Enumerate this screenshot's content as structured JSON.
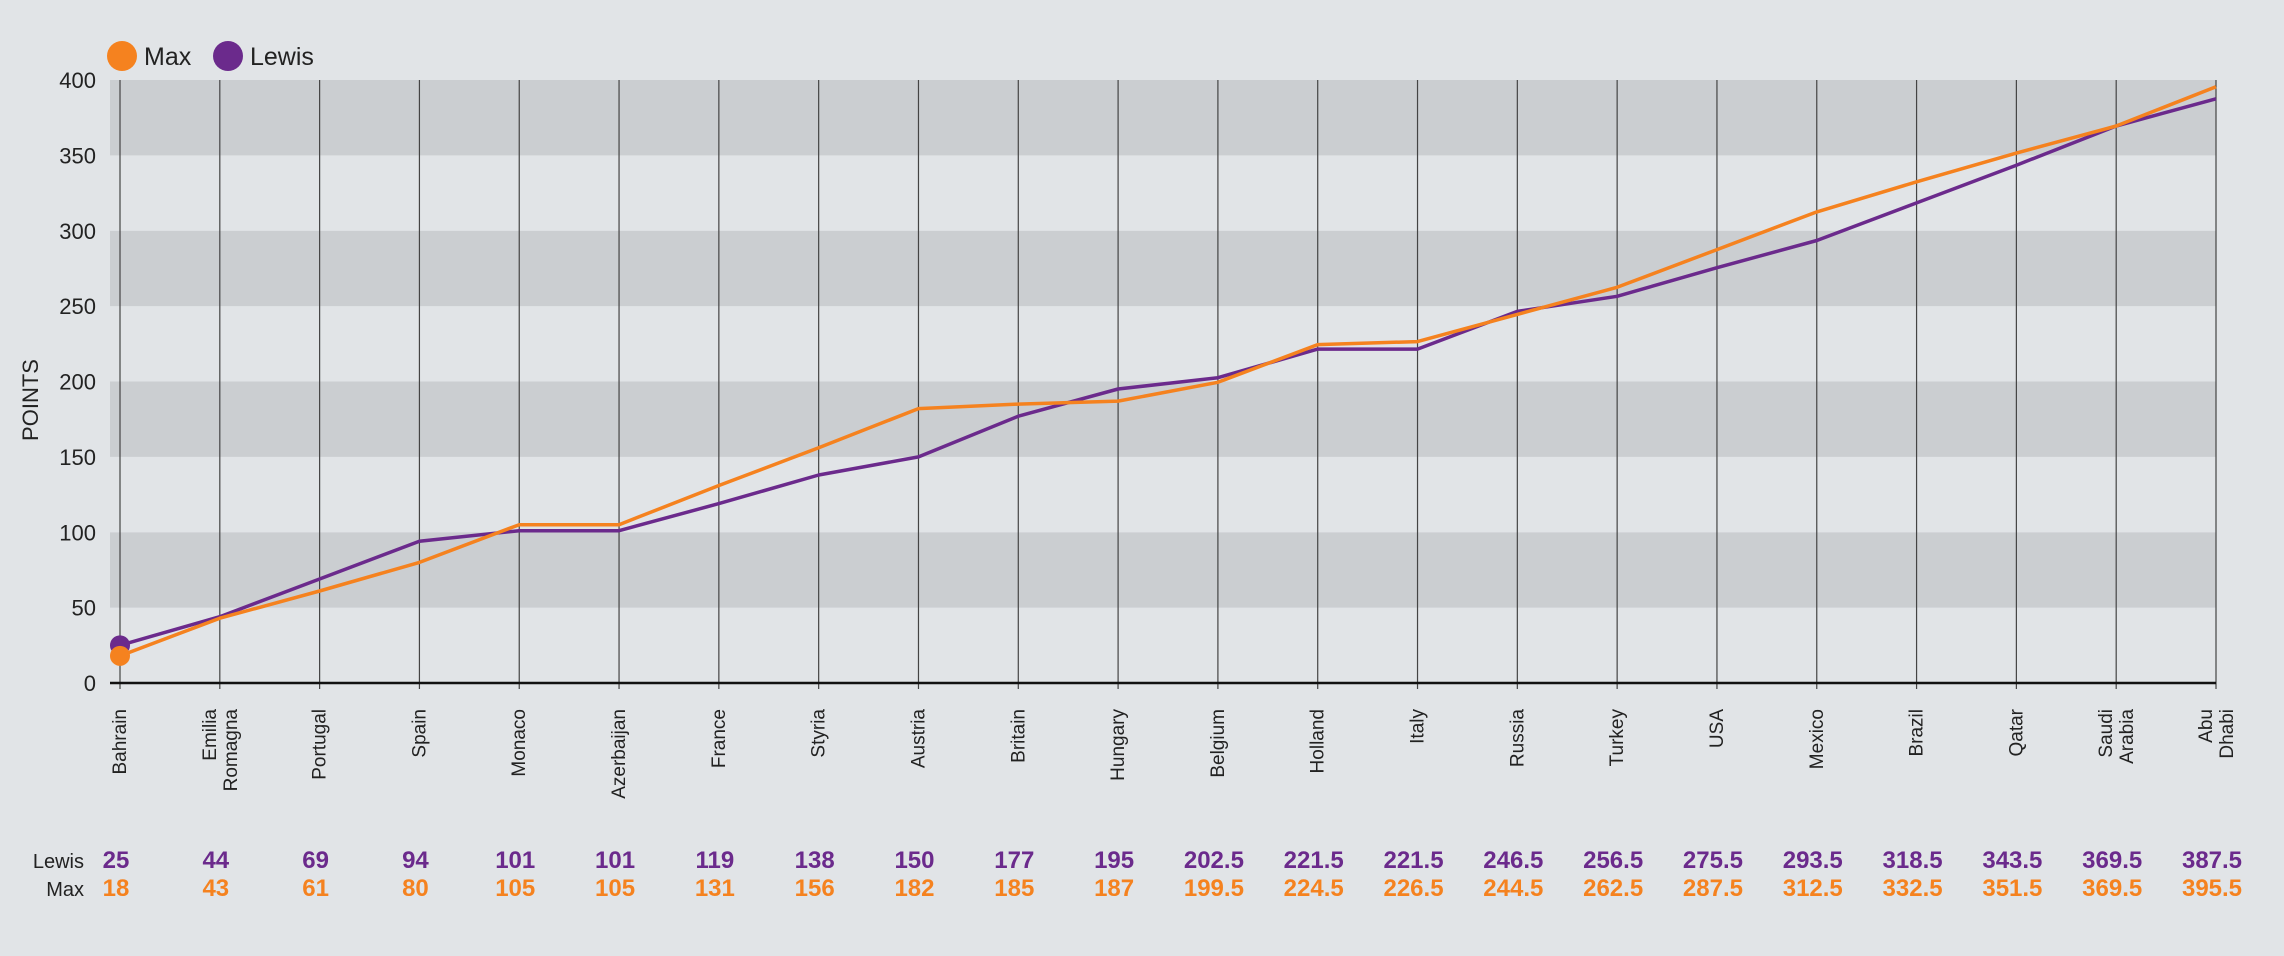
{
  "chart_data": {
    "type": "line",
    "ylabel": "POINTS",
    "ylim": [
      0,
      400
    ],
    "yticks": [
      0,
      50,
      100,
      150,
      200,
      250,
      300,
      350,
      400
    ],
    "grid": "alternating horizontal bands, vertical lines at each category",
    "legend_position": "top-left",
    "categories": [
      "Bahrain",
      "Emilia Romagna",
      "Portugal",
      "Spain",
      "Monaco",
      "Azerbaijan",
      "France",
      "Styria",
      "Austria",
      "Britain",
      "Hungary",
      "Belgium",
      "Holland",
      "Italy",
      "Russia",
      "Turkey",
      "USA",
      "Mexico",
      "Brazil",
      "Qatar",
      "Saudi Arabia",
      "Abu Dhabi"
    ],
    "category_lines": [
      [
        "Bahrain"
      ],
      [
        "Emilia",
        "Romagna"
      ],
      [
        "Portugal"
      ],
      [
        "Spain"
      ],
      [
        "Monaco"
      ],
      [
        "Azerbaijan"
      ],
      [
        "France"
      ],
      [
        "Styria"
      ],
      [
        "Austria"
      ],
      [
        "Britain"
      ],
      [
        "Hungary"
      ],
      [
        "Belgium"
      ],
      [
        "Holland"
      ],
      [
        "Italy"
      ],
      [
        "Russia"
      ],
      [
        "Turkey"
      ],
      [
        "USA"
      ],
      [
        "Mexico"
      ],
      [
        "Brazil"
      ],
      [
        "Qatar"
      ],
      [
        "Saudi",
        "Arabia"
      ],
      [
        "Abu",
        "Dhabi"
      ]
    ],
    "series": [
      {
        "name": "Max",
        "color": "#f5821f",
        "values": [
          18,
          43,
          61,
          80,
          105,
          105,
          131,
          156,
          182,
          185,
          187,
          199.5,
          224.5,
          226.5,
          244.5,
          262.5,
          287.5,
          312.5,
          332.5,
          351.5,
          369.5,
          395.5
        ],
        "labels": [
          "18",
          "43",
          "61",
          "80",
          "105",
          "105",
          "131",
          "156",
          "182",
          "185",
          "187",
          "199.5",
          "224.5",
          "226.5",
          "244.5",
          "262.5",
          "287.5",
          "312.5",
          "332.5",
          "351.5",
          "369.5",
          "395.5"
        ]
      },
      {
        "name": "Lewis",
        "color": "#6b2a8c",
        "values": [
          25,
          44,
          69,
          94,
          101,
          101,
          119,
          138,
          150,
          177,
          195,
          202.5,
          221.5,
          221.5,
          246.5,
          256.5,
          275.5,
          293.5,
          318.5,
          343.5,
          369.5,
          387.5
        ],
        "labels": [
          "25",
          "44",
          "69",
          "94",
          "101",
          "101",
          "119",
          "138",
          "150",
          "177",
          "195",
          "202.5",
          "221.5",
          "221.5",
          "246.5",
          "256.5",
          "275.5",
          "293.5",
          "318.5",
          "343.5",
          "369.5",
          "387.5"
        ]
      }
    ],
    "table_rows": [
      {
        "label": "Lewis",
        "series": 1
      },
      {
        "label": "Max",
        "series": 0
      }
    ]
  },
  "colors": {
    "background": "#e1e4e7",
    "band_dark": "#cbced1",
    "band_light": "#e1e4e7",
    "gridline": "#444444",
    "axis": "#111111"
  }
}
